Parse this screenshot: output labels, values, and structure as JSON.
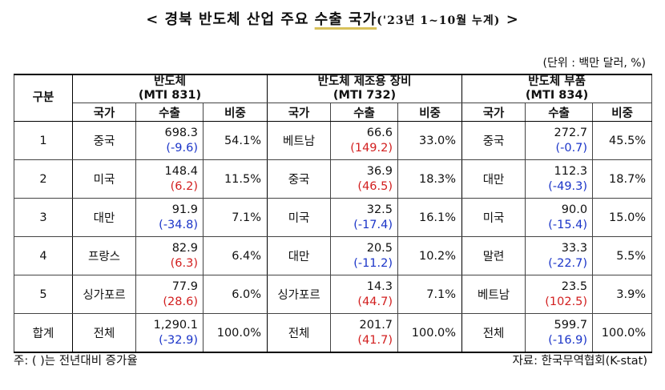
{
  "title": {
    "prefix": "< 경북 반도체 산업 주요 ",
    "underlined": "수출 국가",
    "period": "('23년 1~10월 누계)",
    "suffix": " >"
  },
  "unit": "(단위 : 백만 달러, %)",
  "header": {
    "group": "구분",
    "sections": [
      {
        "name": "반도체",
        "code": "(MTI 831)"
      },
      {
        "name": "반도체 제조용 장비",
        "code": "(MTI 732)"
      },
      {
        "name": "반도체 부품",
        "code": "(MTI 834)"
      }
    ],
    "sub": {
      "country": "국가",
      "export": "수출",
      "share": "비중"
    }
  },
  "rows": [
    {
      "rank": "1",
      "cells": [
        {
          "country": "중국",
          "export": "698.3",
          "change": "(-9.6)",
          "share": "54.1%"
        },
        {
          "country": "베트남",
          "export": "66.6",
          "change": "(149.2)",
          "share": "33.0%"
        },
        {
          "country": "중국",
          "export": "272.7",
          "change": "(-0.7)",
          "share": "45.5%"
        }
      ]
    },
    {
      "rank": "2",
      "cells": [
        {
          "country": "미국",
          "export": "148.4",
          "change": "(6.2)",
          "share": "11.5%"
        },
        {
          "country": "중국",
          "export": "36.9",
          "change": "(46.5)",
          "share": "18.3%"
        },
        {
          "country": "대만",
          "export": "112.3",
          "change": "(-49.3)",
          "share": "18.7%"
        }
      ]
    },
    {
      "rank": "3",
      "cells": [
        {
          "country": "대만",
          "export": "91.9",
          "change": "(-34.8)",
          "share": "7.1%"
        },
        {
          "country": "미국",
          "export": "32.5",
          "change": "(-17.4)",
          "share": "16.1%"
        },
        {
          "country": "미국",
          "export": "90.0",
          "change": "(-15.4)",
          "share": "15.0%"
        }
      ]
    },
    {
      "rank": "4",
      "cells": [
        {
          "country": "프랑스",
          "export": "82.9",
          "change": "(6.3)",
          "share": "6.4%"
        },
        {
          "country": "대만",
          "export": "20.5",
          "change": "(-11.2)",
          "share": "10.2%"
        },
        {
          "country": "말련",
          "export": "33.3",
          "change": "(-22.7)",
          "share": "5.5%"
        }
      ]
    },
    {
      "rank": "5",
      "cells": [
        {
          "country": "싱가포르",
          "export": "77.9",
          "change": "(28.6)",
          "share": "6.0%"
        },
        {
          "country": "싱가포르",
          "export": "14.3",
          "change": "(44.7)",
          "share": "7.1%"
        },
        {
          "country": "베트남",
          "export": "23.5",
          "change": "(102.5)",
          "share": "3.9%"
        }
      ]
    }
  ],
  "total": {
    "rank": "합계",
    "cells": [
      {
        "country": "전체",
        "export": "1,290.1",
        "change": "(-32.9)",
        "share": "100.0%"
      },
      {
        "country": "전체",
        "export": "201.7",
        "change": "(41.7)",
        "share": "100.0%"
      },
      {
        "country": "전체",
        "export": "599.7",
        "change": "(-16.9)",
        "share": "100.0%"
      }
    ]
  },
  "colors": {
    "increase": "#d21f1f",
    "decrease": "#1a34c8",
    "title_underline": "#d8c15a"
  },
  "footnote": "주: (    )는 전년대비 증가율",
  "source": "자료: 한국무역협회(K-stat)"
}
